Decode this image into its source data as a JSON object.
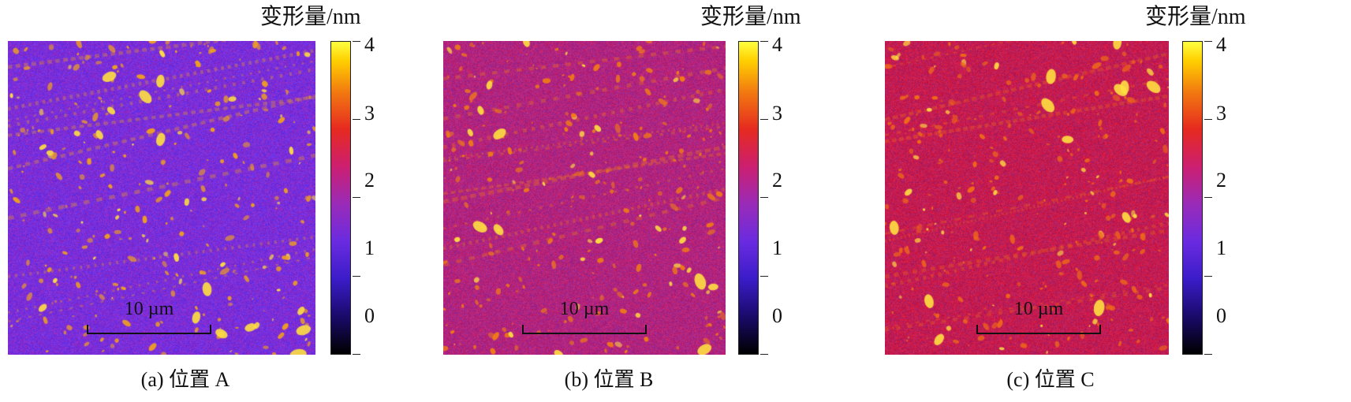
{
  "colorbar": {
    "unit_label": "变形量/nm",
    "ticks": [
      "4",
      "3",
      "2",
      "1",
      "0"
    ],
    "min": 0,
    "max": 4
  },
  "panels": [
    {
      "id": "a",
      "caption": "(a) 位置 A",
      "scalebar_label": "10 µm",
      "base_color": "#7a2ed8",
      "spot_color": "#f0a020",
      "hot_color": "#ffe040"
    },
    {
      "id": "b",
      "caption": "(b) 位置 B",
      "scalebar_label": "10 µm",
      "base_color": "#b0247e",
      "spot_color": "#f07a18",
      "hot_color": "#ffe040"
    },
    {
      "id": "c",
      "caption": "(c) 位置 C",
      "scalebar_label": "10 µm",
      "base_color": "#c21c52",
      "spot_color": "#f06a18",
      "hot_color": "#ffe040"
    }
  ]
}
